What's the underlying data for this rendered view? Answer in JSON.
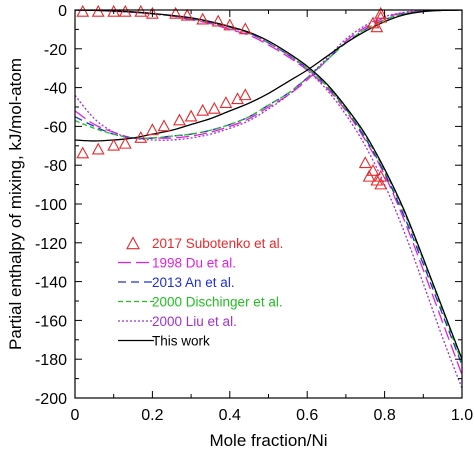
{
  "chart_data": {
    "type": "line",
    "xlabel": "Mole fraction/Ni",
    "ylabel": "Partial enthalpy of mixing, kJ/mol-atom",
    "xlim": [
      0,
      1.0
    ],
    "ylim": [
      -200,
      0
    ],
    "x_ticks": [
      0,
      0.2,
      0.4,
      0.6,
      0.8,
      1.0
    ],
    "x_tick_labels": [
      "0",
      "0.2",
      "0.4",
      "0.6",
      "0.8",
      "1.0"
    ],
    "y_ticks": [
      0,
      -20,
      -40,
      -60,
      -80,
      -100,
      -120,
      -140,
      -160,
      -180,
      -200
    ],
    "y_tick_labels": [
      "0",
      "-20",
      "-40",
      "-60",
      "-80",
      "-100",
      "-120",
      "-140",
      "-160",
      "-180",
      "-200"
    ],
    "legend_position": "lower-left",
    "experimental": {
      "name": "2017 Subotenko et al.",
      "color": "#e8282b",
      "marker": "open-triangle",
      "points": [
        {
          "x": 0.02,
          "y": -1
        },
        {
          "x": 0.06,
          "y": -1
        },
        {
          "x": 0.1,
          "y": -1
        },
        {
          "x": 0.13,
          "y": -1
        },
        {
          "x": 0.17,
          "y": -1
        },
        {
          "x": 0.2,
          "y": -2
        },
        {
          "x": 0.26,
          "y": -2
        },
        {
          "x": 0.29,
          "y": -3
        },
        {
          "x": 0.33,
          "y": -5
        },
        {
          "x": 0.37,
          "y": -6
        },
        {
          "x": 0.4,
          "y": -8
        },
        {
          "x": 0.44,
          "y": -10
        },
        {
          "x": 0.77,
          "y": -7
        },
        {
          "x": 0.78,
          "y": -9
        },
        {
          "x": 0.79,
          "y": -4
        },
        {
          "x": 0.79,
          "y": -2
        },
        {
          "x": 0.02,
          "y": -74
        },
        {
          "x": 0.06,
          "y": -72
        },
        {
          "x": 0.1,
          "y": -70
        },
        {
          "x": 0.13,
          "y": -69
        },
        {
          "x": 0.17,
          "y": -66
        },
        {
          "x": 0.2,
          "y": -62
        },
        {
          "x": 0.23,
          "y": -60
        },
        {
          "x": 0.27,
          "y": -57
        },
        {
          "x": 0.3,
          "y": -55
        },
        {
          "x": 0.33,
          "y": -52
        },
        {
          "x": 0.36,
          "y": -51
        },
        {
          "x": 0.39,
          "y": -48
        },
        {
          "x": 0.42,
          "y": -46
        },
        {
          "x": 0.44,
          "y": -44
        },
        {
          "x": 0.75,
          "y": -79
        },
        {
          "x": 0.76,
          "y": -86
        },
        {
          "x": 0.77,
          "y": -83
        },
        {
          "x": 0.78,
          "y": -88
        },
        {
          "x": 0.79,
          "y": -90
        },
        {
          "x": 0.79,
          "y": -86
        }
      ]
    },
    "series": [
      {
        "name": "1998 Du et al.",
        "color": "#e020e0",
        "dash": "13 5",
        "width": 1.3,
        "x": [
          0,
          0.05,
          0.1,
          0.15,
          0.2,
          0.25,
          0.3,
          0.35,
          0.4,
          0.45,
          0.5,
          0.55,
          0.6,
          0.65,
          0.7,
          0.75,
          0.8,
          0.85,
          0.9,
          0.95,
          1.0
        ],
        "y": [
          -52,
          -59,
          -63,
          -66,
          -66,
          -66,
          -65,
          -63,
          -60,
          -56,
          -50,
          -44,
          -36,
          -26,
          -16,
          -9,
          -4,
          -1.5,
          -0.5,
          -0.1,
          0
        ],
        "y2": [
          0,
          -0.2,
          -0.6,
          -1.2,
          -2,
          -3,
          -5,
          -7,
          -10,
          -13,
          -18,
          -24,
          -31,
          -40,
          -52,
          -67,
          -85,
          -108,
          -134,
          -161,
          -188
        ]
      },
      {
        "name": "2013 An et al.",
        "color": "#2030d0",
        "dash": "8 5",
        "width": 1.3,
        "x": [
          0,
          0.05,
          0.1,
          0.15,
          0.2,
          0.25,
          0.3,
          0.35,
          0.4,
          0.45,
          0.5,
          0.55,
          0.6,
          0.65,
          0.7,
          0.75,
          0.8,
          0.85,
          0.9,
          0.95,
          1.0
        ],
        "y": [
          -55,
          -60,
          -64,
          -66,
          -66,
          -65,
          -64,
          -62,
          -59,
          -55,
          -49,
          -43,
          -35,
          -26,
          -17,
          -10,
          -5,
          -2,
          -0.7,
          -0.2,
          0
        ],
        "y2": [
          0,
          -0.2,
          -0.6,
          -1.1,
          -2,
          -3,
          -4.5,
          -6.5,
          -9,
          -12,
          -17,
          -23,
          -30,
          -39,
          -51,
          -66,
          -84,
          -106,
          -131,
          -157,
          -183
        ]
      },
      {
        "name": "2000 Dischinger et al.",
        "color": "#20c020",
        "dash": "5 3",
        "width": 1.3,
        "x": [
          0,
          0.05,
          0.1,
          0.15,
          0.2,
          0.25,
          0.3,
          0.35,
          0.4,
          0.45,
          0.5,
          0.55,
          0.6,
          0.65,
          0.7,
          0.75,
          0.8,
          0.85,
          0.9,
          0.95,
          1.0
        ],
        "y": [
          -57,
          -61,
          -64,
          -66,
          -66,
          -65,
          -64,
          -62,
          -59,
          -55,
          -49,
          -43,
          -35,
          -26,
          -17,
          -10,
          -5,
          -2,
          -0.6,
          -0.1,
          0
        ],
        "y2": [
          0,
          -0.2,
          -0.5,
          -1.1,
          -2,
          -3,
          -4.5,
          -6.5,
          -9,
          -12,
          -17,
          -23,
          -30,
          -39,
          -51,
          -65,
          -83,
          -104,
          -129,
          -155,
          -182
        ]
      },
      {
        "name": "2000 Liu et al.",
        "color": "#a030d0",
        "dash": "2 2",
        "width": 1.3,
        "x": [
          0,
          0.05,
          0.1,
          0.15,
          0.2,
          0.25,
          0.3,
          0.35,
          0.4,
          0.45,
          0.5,
          0.55,
          0.6,
          0.65,
          0.7,
          0.75,
          0.8,
          0.85,
          0.9,
          0.95,
          1.0
        ],
        "y": [
          -44,
          -56,
          -63,
          -66,
          -67,
          -67,
          -66,
          -64,
          -61,
          -57,
          -51,
          -44,
          -35,
          -25,
          -15,
          -8,
          -3.5,
          -1.2,
          -0.3,
          0,
          0
        ],
        "y2": [
          0,
          -0.2,
          -0.6,
          -1.2,
          -2,
          -3,
          -4.5,
          -6.5,
          -9,
          -12,
          -17,
          -23,
          -31,
          -41,
          -54,
          -70,
          -90,
          -114,
          -141,
          -169,
          -195
        ]
      },
      {
        "name": "This work",
        "color": "#000000",
        "dash": "",
        "width": 1.3,
        "x": [
          0,
          0.05,
          0.1,
          0.15,
          0.2,
          0.25,
          0.3,
          0.35,
          0.4,
          0.45,
          0.5,
          0.55,
          0.6,
          0.65,
          0.7,
          0.75,
          0.8,
          0.85,
          0.9,
          0.95,
          1.0
        ],
        "y": [
          -67,
          -67.5,
          -67,
          -66,
          -64,
          -62,
          -59,
          -56,
          -52,
          -48,
          -43,
          -37,
          -31,
          -24,
          -17,
          -11,
          -6,
          -2.5,
          -0.8,
          -0.2,
          0
        ],
        "y2": [
          0,
          -0.2,
          -0.5,
          -1,
          -1.8,
          -2.8,
          -4,
          -6,
          -8.5,
          -11.5,
          -16,
          -22,
          -29,
          -38,
          -50,
          -64,
          -82,
          -103,
          -128,
          -154,
          -180
        ]
      }
    ]
  }
}
